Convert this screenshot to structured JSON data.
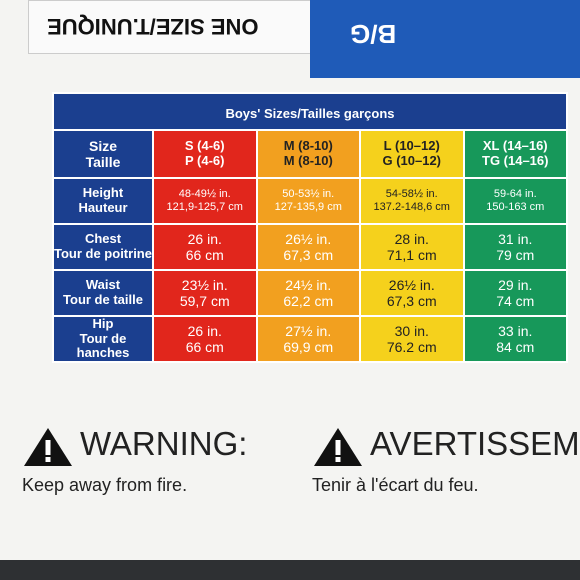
{
  "header": {
    "size_text": "ONE SIZE/T.UNIQUE",
    "code": "B/G"
  },
  "table": {
    "title": "Boys' Sizes/Tailles garçons",
    "rows": [
      [
        [
          "Size",
          "Taille"
        ],
        [
          "S (4-6)",
          "P (4-6)"
        ],
        [
          "M (8-10)",
          "M (8-10)"
        ],
        [
          "L (10–12)",
          "G (10–12)"
        ],
        [
          "XL (14–16)",
          "TG (14–16)"
        ]
      ],
      [
        [
          "Height",
          "Hauteur"
        ],
        [
          "48-49½ in.",
          "121,9-125,7 cm"
        ],
        [
          "50-53½ in.",
          "127-135,9 cm"
        ],
        [
          "54-58½ in.",
          "137.2-148,6 cm"
        ],
        [
          "59-64 in.",
          "150-163 cm"
        ]
      ],
      [
        [
          "Chest",
          "Tour de poitrine"
        ],
        [
          "26 in.",
          "66 cm"
        ],
        [
          "26½ in.",
          "67,3 cm"
        ],
        [
          "28 in.",
          "71,1 cm"
        ],
        [
          "31 in.",
          "79 cm"
        ]
      ],
      [
        [
          "Waist",
          "Tour de taille"
        ],
        [
          "23½ in.",
          "59,7 cm"
        ],
        [
          "24½ in.",
          "62,2 cm"
        ],
        [
          "26½ in.",
          "67,3 cm"
        ],
        [
          "29 in.",
          "74 cm"
        ]
      ],
      [
        [
          "Hip",
          "Tour de hanches"
        ],
        [
          "26 in.",
          "66 cm"
        ],
        [
          "27½ in.",
          "69,9 cm"
        ],
        [
          "30 in.",
          "76.2 cm"
        ],
        [
          "33 in.",
          "84 cm"
        ]
      ]
    ]
  },
  "warnings": [
    {
      "title": "WARNING:",
      "text": "Keep away from fire."
    },
    {
      "title": "AVERTISSEM",
      "text": "Tenir à l'écart du feu."
    }
  ]
}
